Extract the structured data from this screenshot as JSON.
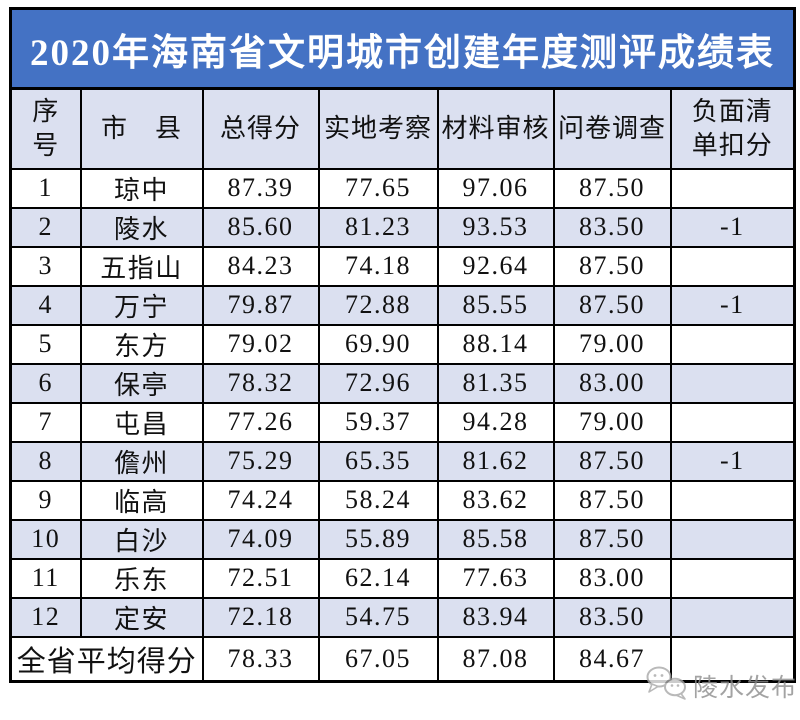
{
  "chart_data": {
    "type": "table",
    "title": "2020年海南省文明城市创建年度测评成绩表",
    "columns": [
      "序号",
      "市　县",
      "总得分",
      "实地考察",
      "材料审核",
      "问卷调查",
      "负面清单扣分"
    ],
    "rows": [
      {
        "no": "1",
        "city": "琼中",
        "total": "87.39",
        "field": "77.65",
        "material": "97.06",
        "survey": "87.50",
        "deduction": ""
      },
      {
        "no": "2",
        "city": "陵水",
        "total": "85.60",
        "field": "81.23",
        "material": "93.53",
        "survey": "83.50",
        "deduction": "-1"
      },
      {
        "no": "3",
        "city": "五指山",
        "total": "84.23",
        "field": "74.18",
        "material": "92.64",
        "survey": "87.50",
        "deduction": ""
      },
      {
        "no": "4",
        "city": "万宁",
        "total": "79.87",
        "field": "72.88",
        "material": "85.55",
        "survey": "87.50",
        "deduction": "-1"
      },
      {
        "no": "5",
        "city": "东方",
        "total": "79.02",
        "field": "69.90",
        "material": "88.14",
        "survey": "79.00",
        "deduction": ""
      },
      {
        "no": "6",
        "city": "保亭",
        "total": "78.32",
        "field": "72.96",
        "material": "81.35",
        "survey": "83.00",
        "deduction": ""
      },
      {
        "no": "7",
        "city": "屯昌",
        "total": "77.26",
        "field": "59.37",
        "material": "94.28",
        "survey": "79.00",
        "deduction": ""
      },
      {
        "no": "8",
        "city": "儋州",
        "total": "75.29",
        "field": "65.35",
        "material": "81.62",
        "survey": "87.50",
        "deduction": "-1"
      },
      {
        "no": "9",
        "city": "临高",
        "total": "74.24",
        "field": "58.24",
        "material": "83.62",
        "survey": "87.50",
        "deduction": ""
      },
      {
        "no": "10",
        "city": "白沙",
        "total": "74.09",
        "field": "55.89",
        "material": "85.58",
        "survey": "87.50",
        "deduction": ""
      },
      {
        "no": "11",
        "city": "乐东",
        "total": "72.51",
        "field": "62.14",
        "material": "77.63",
        "survey": "83.00",
        "deduction": ""
      },
      {
        "no": "12",
        "city": "定安",
        "total": "72.18",
        "field": "54.75",
        "material": "83.94",
        "survey": "83.50",
        "deduction": ""
      }
    ],
    "footer": {
      "label": "全省平均得分",
      "total": "78.33",
      "field": "67.05",
      "material": "87.08",
      "survey": "84.67",
      "deduction": ""
    }
  },
  "watermark": {
    "label": "陵水发布",
    "icon": "wechat-bubbles-icon"
  },
  "colors": {
    "title_bg": "#4472c4",
    "title_text": "#ffffff",
    "band_bg": "#dbe0f0",
    "border": "#000000",
    "watermark": "#8d8d8d"
  }
}
